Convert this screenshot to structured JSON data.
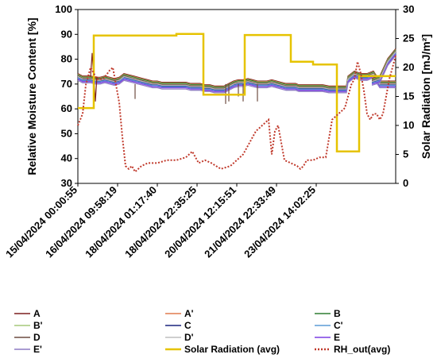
{
  "chart_data": {
    "type": "line",
    "title": "",
    "ylabel": "Relative Moisture Content [%]",
    "y2label": "Solar Radiation [mJ/m²]",
    "ylim": [
      30,
      100
    ],
    "y2lim": [
      0,
      30
    ],
    "yticks": [
      "30",
      "40",
      "50",
      "60",
      "70",
      "80",
      "90",
      "100"
    ],
    "y2ticks": [
      "0",
      "5",
      "10",
      "15",
      "20",
      "25",
      "30"
    ],
    "xlim": [
      0,
      200
    ],
    "x_tick_positions": [
      0,
      25,
      50,
      75,
      100,
      125,
      150
    ],
    "x_tick_labels": [
      "15/04/2024  00:00:55",
      "16/04/2024  09:58:19",
      "18/04/2024  01:17:40",
      "18/04/2024  22:35:25",
      "20/04/2024  12:15:51",
      "21/04/2024  22:33:49",
      "23/04/2024  14:02:25"
    ],
    "legend_position": "bottom",
    "legend_columns": 3,
    "series": [
      {
        "name": "A",
        "color": "#7b1f1f",
        "axis": "left",
        "offset": 1.2
      },
      {
        "name": "A'",
        "color": "#e07a4f",
        "axis": "left",
        "offset": 1.0
      },
      {
        "name": "B",
        "color": "#2e7d32",
        "axis": "left",
        "offset": 0.8
      },
      {
        "name": "B'",
        "color": "#a5c87a",
        "axis": "left",
        "offset": 0.5
      },
      {
        "name": "C",
        "color": "#1a237e",
        "axis": "left",
        "offset": -0.3
      },
      {
        "name": "C'",
        "color": "#5b9bd5",
        "axis": "left",
        "offset": -0.6
      },
      {
        "name": "D",
        "color": "#6d4c41",
        "axis": "left",
        "offset": 0.3
      },
      {
        "name": "D'",
        "color": "#bdbdbd",
        "axis": "left",
        "offset": 0.0
      },
      {
        "name": "E",
        "color": "#7b3fe4",
        "axis": "left",
        "offset": -1.0
      },
      {
        "name": "E'",
        "color": "#8e7cc3",
        "axis": "left",
        "offset": -1.5
      },
      {
        "name": "Solar Radiation (avg)",
        "color": "#e6c300",
        "axis": "right",
        "style": "solid"
      },
      {
        "name": "RH_out(avg)",
        "color": "#c0392b",
        "axis": "right",
        "style": "dotted"
      }
    ],
    "moisture_base": {
      "x": [
        0,
        3,
        6,
        8,
        11,
        14,
        17,
        20,
        23,
        26,
        29,
        32,
        35,
        38,
        41,
        44,
        47,
        50,
        53,
        56,
        60,
        65,
        68,
        71,
        74,
        77,
        80,
        83,
        86,
        89,
        92,
        95,
        98,
        101,
        104,
        107,
        110,
        113,
        116,
        119,
        122,
        125,
        128,
        131,
        134,
        136,
        137,
        139,
        141,
        143,
        146,
        150,
        154,
        158,
        162,
        166,
        169,
        170,
        174,
        178,
        182,
        186,
        190,
        194,
        198,
        200
      ],
      "y": [
        73,
        72,
        72,
        72,
        71.5,
        71.5,
        72,
        71.5,
        71,
        71.5,
        73,
        72.5,
        72,
        71.5,
        71,
        70.5,
        70,
        70,
        69.5,
        69.5,
        69.5,
        69.5,
        69.5,
        69,
        69,
        69,
        68.5,
        68.5,
        68,
        68,
        68,
        69,
        70,
        70.5,
        70.5,
        71,
        70.5,
        70,
        70,
        70,
        70.5,
        70,
        69.5,
        69,
        69,
        69,
        69,
        68.5,
        68.5,
        68.5,
        68.5,
        68.5,
        68.5,
        68,
        68,
        68,
        68,
        72,
        74,
        73,
        73,
        74,
        70,
        70,
        70,
        70
      ]
    },
    "moisture_spike_A": {
      "x": [
        8,
        9,
        10,
        11,
        12
      ],
      "y": [
        73,
        82.5,
        73,
        63,
        73
      ]
    },
    "moisture_dips_A": {
      "x": [
        36,
        93,
        95,
        101,
        104,
        113
      ],
      "y": [
        64,
        62,
        63,
        65,
        63,
        63
      ]
    },
    "moisture_end": {
      "x": [
        185,
        190,
        195,
        200
      ],
      "y": [
        71,
        72,
        79,
        83
      ]
    },
    "solar_radiation": {
      "x": [
        0,
        10,
        10,
        30,
        30,
        62,
        62,
        79,
        79,
        93,
        93,
        105,
        105,
        134,
        134,
        148,
        148,
        163,
        163,
        177,
        177,
        200
      ],
      "y": [
        13,
        13,
        25.5,
        25.5,
        25.5,
        25.5,
        25.8,
        25.8,
        15.3,
        15.3,
        15.3,
        15.3,
        25.6,
        25.6,
        21,
        21,
        20.5,
        20.5,
        5.5,
        5.5,
        18.5,
        18.5
      ]
    },
    "rh_out": {
      "x": [
        0,
        3,
        5,
        8,
        12,
        16,
        20,
        22,
        24,
        26,
        28,
        30,
        32,
        34,
        36,
        38,
        40,
        44,
        50,
        56,
        62,
        68,
        72,
        76,
        80,
        84,
        90,
        96,
        100,
        104,
        108,
        112,
        116,
        118,
        120,
        122,
        124,
        126,
        130,
        134,
        138,
        140,
        142,
        144,
        148,
        152,
        156,
        160,
        164,
        168,
        170,
        172,
        174,
        176,
        178,
        180,
        182,
        184,
        186,
        188,
        190,
        192,
        194,
        196,
        198,
        200
      ],
      "y": [
        10,
        12,
        17,
        20,
        18,
        18,
        19.5,
        20,
        17,
        14,
        8,
        3,
        2.5,
        3,
        2,
        2.5,
        3,
        3.5,
        3.5,
        4,
        4,
        4.5,
        5.5,
        3.5,
        4,
        3.5,
        2.5,
        3,
        4,
        5,
        7,
        9,
        10,
        10.5,
        11,
        5,
        9,
        10,
        4,
        3.5,
        3,
        2.5,
        3,
        4,
        4,
        4.5,
        4.5,
        11,
        12,
        13,
        15,
        17,
        18,
        21,
        19,
        16,
        12,
        11,
        12,
        12,
        11,
        12,
        15,
        18,
        20,
        22
      ]
    }
  }
}
